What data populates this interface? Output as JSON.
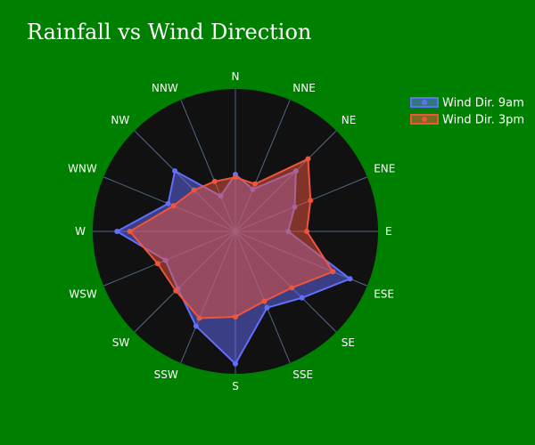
{
  "chart_data": {
    "type": "radar",
    "title": "Rainfall vs Wind Direction",
    "categories": [
      "N",
      "NNE",
      "NE",
      "ENE",
      "E",
      "ESE",
      "SE",
      "SSE",
      "S",
      "SSW",
      "SW",
      "WSW",
      "W",
      "WNW",
      "NW",
      "NNW"
    ],
    "r_range": [
      0,
      100
    ],
    "grid": true,
    "legend": "top-right",
    "series": [
      {
        "name": "Wind Dir. 9am",
        "color": "#636efa",
        "values": [
          40,
          32,
          60,
          45,
          37,
          87,
          66,
          58,
          93,
          72,
          57,
          53,
          83,
          51,
          60,
          27
        ]
      },
      {
        "name": "Wind Dir. 3pm",
        "color": "#ef553b",
        "values": [
          38,
          36,
          72,
          57,
          50,
          74,
          56,
          53,
          60,
          66,
          59,
          59,
          74,
          47,
          41,
          38
        ]
      }
    ]
  }
}
